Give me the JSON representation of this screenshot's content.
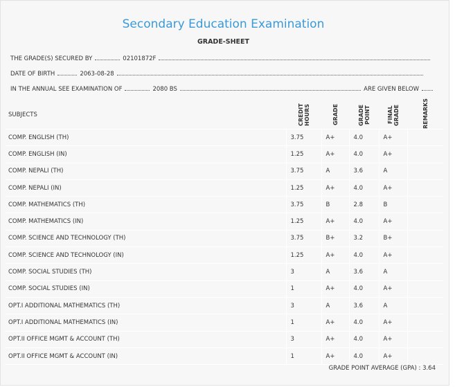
{
  "header": {
    "title": "Secondary Education Examination",
    "subtitle": "GRADE-SHEET"
  },
  "info": [
    {
      "label": "THE GRADE(S) SECURED BY",
      "value": "02101872F"
    },
    {
      "label": "DATE OF BIRTH",
      "value": "2063-08-28"
    },
    {
      "label": "IN THE ANNUAL SEE EXAMINATION OF",
      "value": "2080 BS",
      "suffix": "ARE GIVEN BELOW"
    }
  ],
  "table": {
    "columns": [
      "SUBJECTS",
      "CREDIT HOURS",
      "GRADE",
      "GRADE POINT",
      "FINAL GRADE",
      "REMARKS"
    ],
    "rows": [
      [
        "COMP. ENGLISH (TH)",
        "3.75",
        "A+",
        "4.0",
        "A+"
      ],
      [
        "COMP. ENGLISH (IN)",
        "1.25",
        "A+",
        "4.0",
        "A+"
      ],
      [
        "COMP. NEPALI (TH)",
        "3.75",
        "A",
        "3.6",
        "A"
      ],
      [
        "COMP. NEPALI (IN)",
        "1.25",
        "A+",
        "4.0",
        "A+"
      ],
      [
        "COMP. MATHEMATICS (TH)",
        "3.75",
        "B",
        "2.8",
        "B"
      ],
      [
        "COMP. MATHEMATICS (IN)",
        "1.25",
        "A+",
        "4.0",
        "A+"
      ],
      [
        "COMP. SCIENCE AND TECHNOLOGY (TH)",
        "3.75",
        "B+",
        "3.2",
        "B+"
      ],
      [
        "COMP. SCIENCE AND TECHNOLOGY (IN)",
        "1.25",
        "A+",
        "4.0",
        "A+"
      ],
      [
        "COMP. SOCIAL STUDIES (TH)",
        "3",
        "A",
        "3.6",
        "A"
      ],
      [
        "COMP. SOCIAL STUDIES (IN)",
        "1",
        "A+",
        "4.0",
        "A+"
      ],
      [
        "OPT.I ADDITIONAL MATHEMATICS (TH)",
        "3",
        "A",
        "3.6",
        "A"
      ],
      [
        "OPT.I ADDITIONAL MATHEMATICS (IN)",
        "1",
        "A+",
        "4.0",
        "A+"
      ],
      [
        "OPT.II OFFICE MGMT & ACCOUNT (TH)",
        "3",
        "A+",
        "4.0",
        "A+"
      ],
      [
        "OPT.II OFFICE MGMT & ACCOUNT (IN)",
        "1",
        "A+",
        "4.0",
        "A+"
      ]
    ]
  },
  "footer": {
    "label": "GRADE POINT AVERAGE (GPA) :",
    "value": "3.64"
  }
}
